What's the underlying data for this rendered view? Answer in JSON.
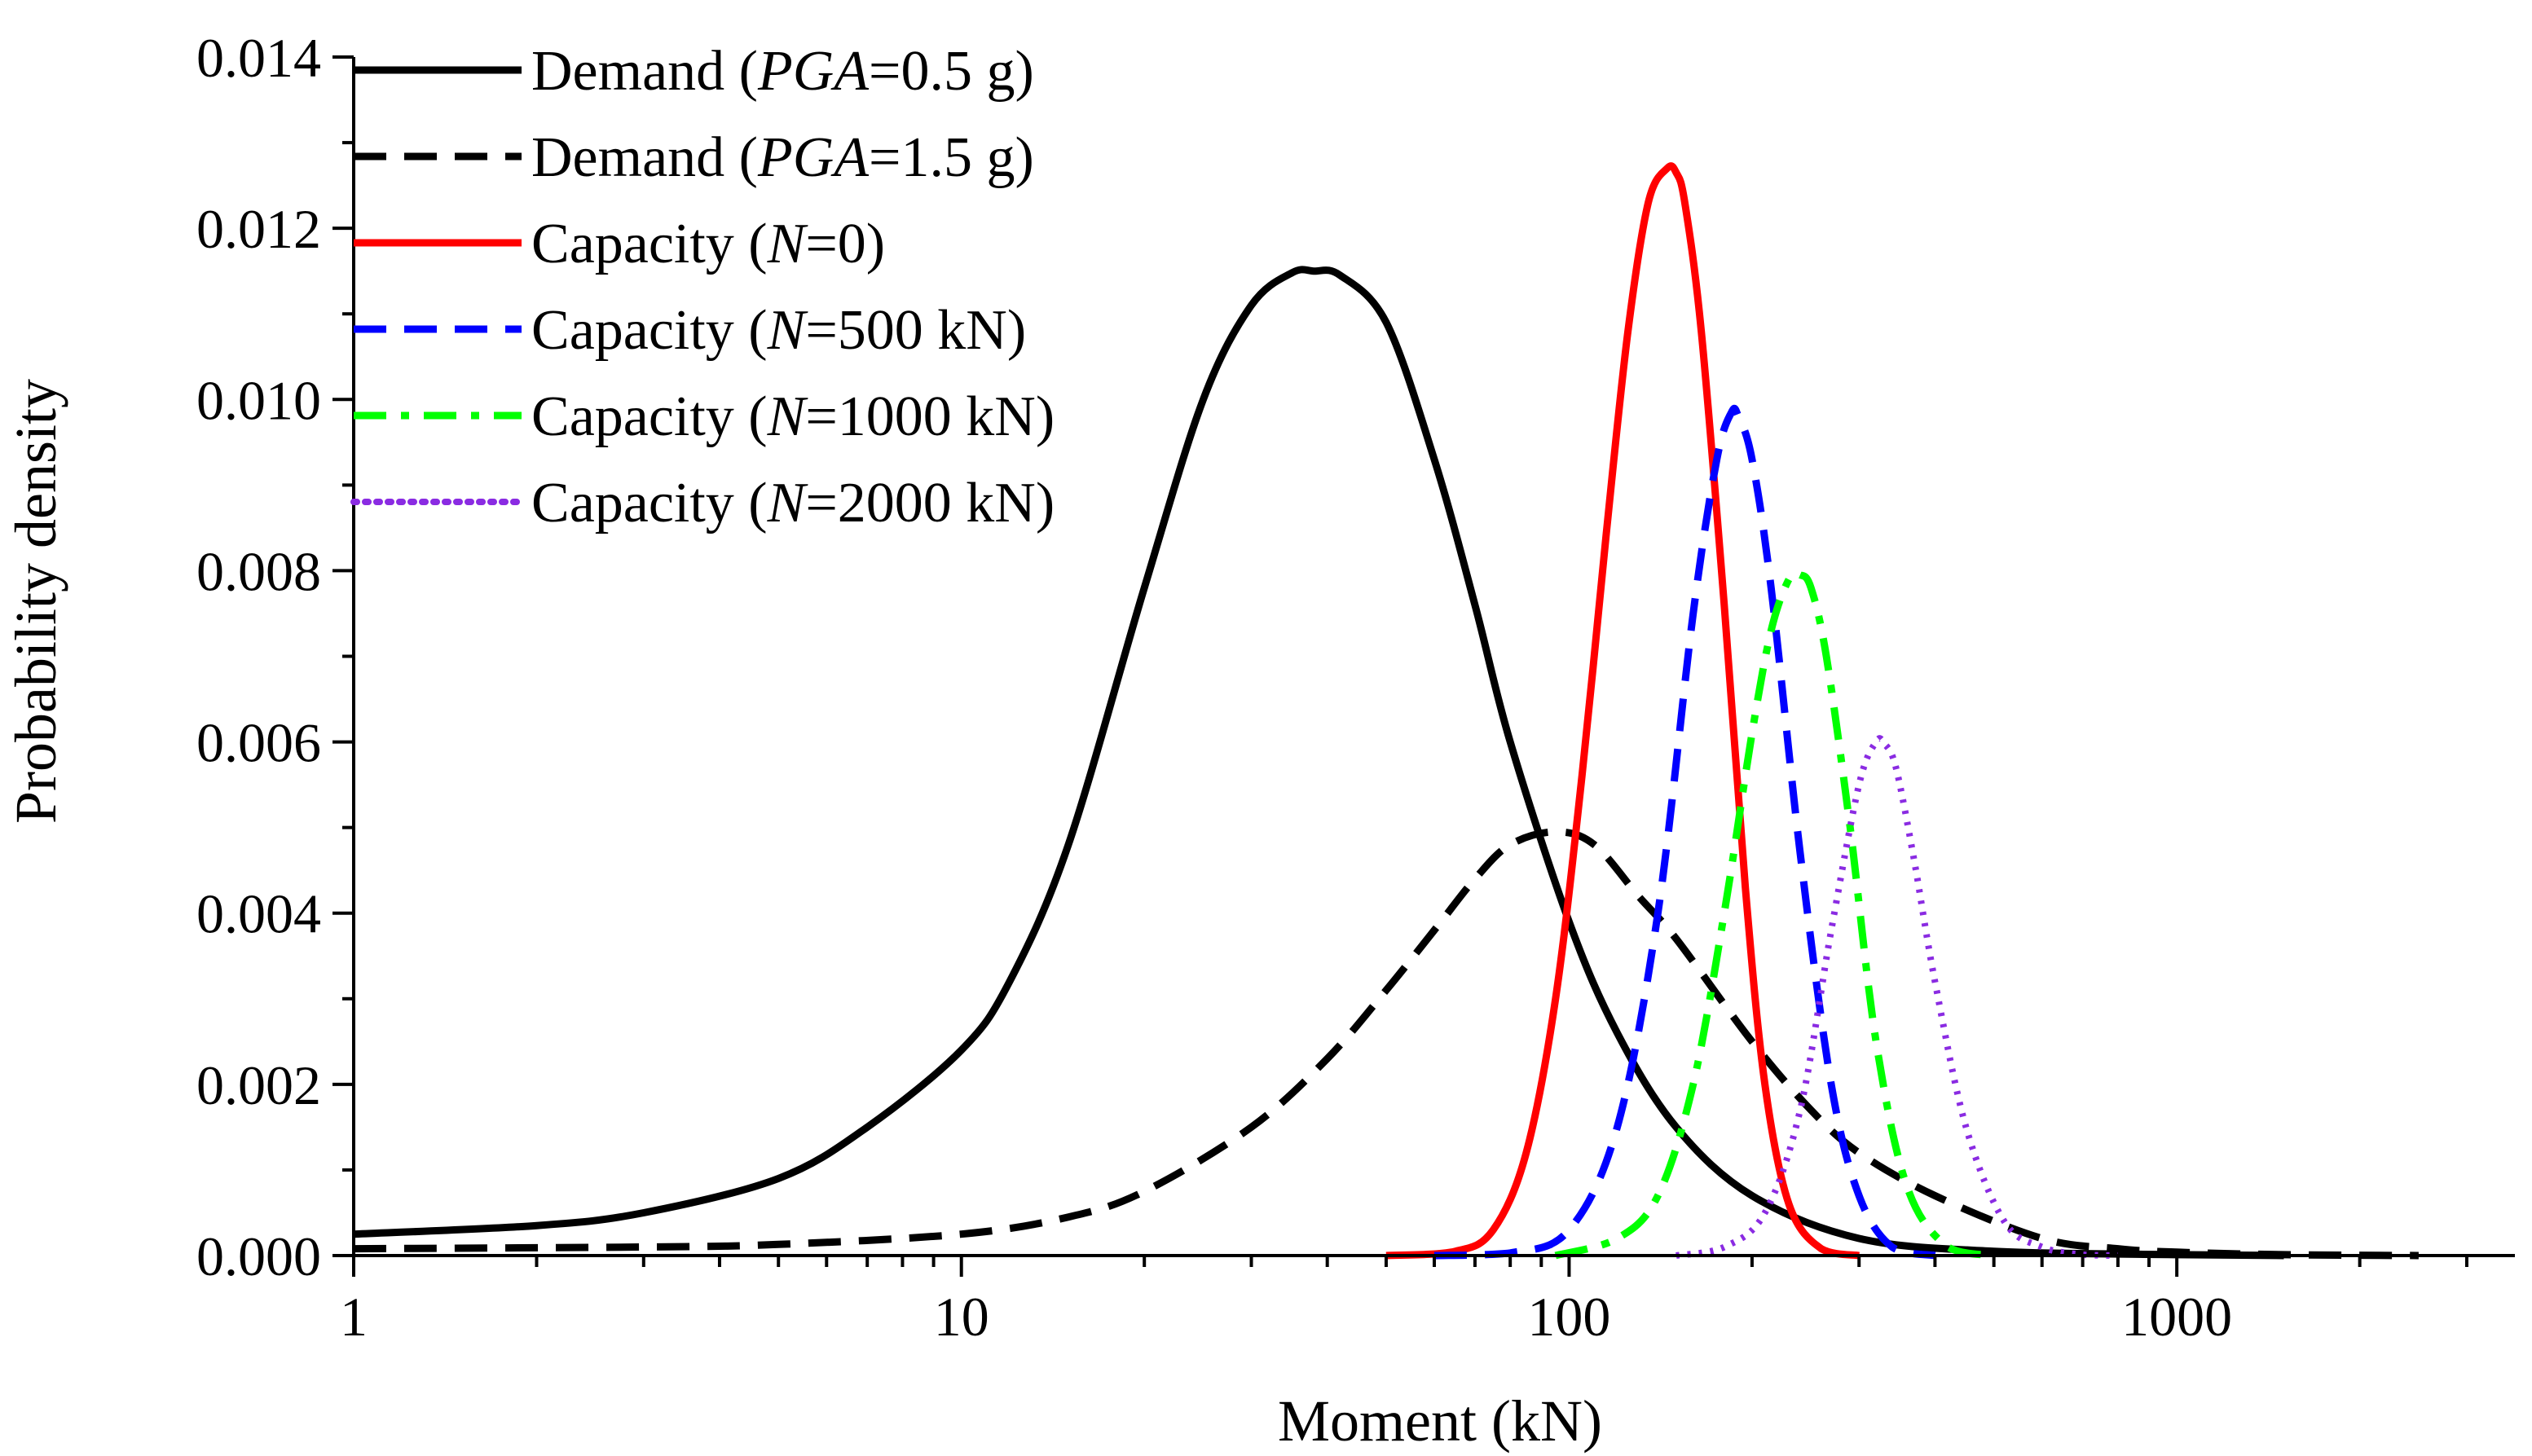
{
  "chart_data": {
    "type": "line",
    "title": "",
    "xlabel": "Moment (kN)",
    "ylabel": "Probability density",
    "xscale": "log",
    "xlim": [
      1,
      3600
    ],
    "ylim": [
      0,
      0.014
    ],
    "xticks": [
      1,
      10,
      100,
      1000
    ],
    "xtick_labels": [
      "1",
      "10",
      "100",
      "1000"
    ],
    "yticks": [
      0,
      0.002,
      0.004,
      0.006,
      0.008,
      0.01,
      0.012,
      0.014
    ],
    "ytick_labels": [
      "0.000",
      "0.002",
      "0.004",
      "0.006",
      "0.008",
      "0.010",
      "0.012",
      "0.014"
    ],
    "legend_position": "top-left",
    "series": [
      {
        "name": "Demand (PGA=0.5 g)",
        "legend_parts": [
          {
            "t": "Demand ("
          },
          {
            "t": "PGA",
            "i": true
          },
          {
            "t": "=0.5 g)"
          }
        ],
        "color": "#000000",
        "style": "solid",
        "x": [
          1,
          2,
          3,
          5,
          7,
          10,
          12,
          15,
          20,
          25,
          30,
          35,
          38,
          42,
          50,
          60,
          70,
          80,
          100,
          120,
          150,
          200,
          300,
          500,
          1000,
          1500
        ],
        "y": [
          0.00025,
          0.00035,
          0.0005,
          0.0009,
          0.0015,
          0.0024,
          0.0032,
          0.0048,
          0.0078,
          0.01,
          0.0111,
          0.01148,
          0.0115,
          0.01145,
          0.0109,
          0.0093,
          0.0076,
          0.006,
          0.0039,
          0.0026,
          0.0015,
          0.0007,
          0.0002,
          5e-05,
          1e-05,
          0.0
        ]
      },
      {
        "name": "Demand (PGA=1.5 g)",
        "legend_parts": [
          {
            "t": "Demand ("
          },
          {
            "t": "PGA",
            "i": true
          },
          {
            "t": "=1.5 g)"
          }
        ],
        "color": "#000000",
        "style": "dashed",
        "x": [
          1,
          3,
          5,
          10,
          15,
          20,
          30,
          40,
          50,
          60,
          70,
          80,
          95,
          110,
          130,
          150,
          200,
          250,
          300,
          400,
          600,
          800,
          1000,
          1500,
          2500
        ],
        "y": [
          8e-05,
          0.0001,
          0.00013,
          0.00025,
          0.00045,
          0.00075,
          0.0015,
          0.0023,
          0.0031,
          0.0038,
          0.0044,
          0.0048,
          0.00495,
          0.0048,
          0.0042,
          0.0037,
          0.0025,
          0.0017,
          0.0012,
          0.0007,
          0.0002,
          8e-05,
          4e-05,
          1e-05,
          0.0
        ]
      },
      {
        "name": "Capacity (N=0)",
        "legend_parts": [
          {
            "t": "Capacity ("
          },
          {
            "t": "N",
            "i": true
          },
          {
            "t": "=0)"
          }
        ],
        "color": "#ff0000",
        "style": "solid",
        "x": [
          50,
          65,
          75,
          85,
          95,
          105,
          115,
          125,
          135,
          145,
          150,
          155,
          165,
          180,
          195,
          210,
          230,
          260,
          300
        ],
        "y": [
          0.0,
          5e-05,
          0.0003,
          0.0012,
          0.003,
          0.0056,
          0.0084,
          0.0108,
          0.0123,
          0.0127,
          0.01265,
          0.0123,
          0.0108,
          0.0076,
          0.0043,
          0.002,
          0.0006,
          8e-05,
          0.0
        ]
      },
      {
        "name": "Capacity (N=500 kN)",
        "legend_parts": [
          {
            "t": "Capacity ("
          },
          {
            "t": "N",
            "i": true
          },
          {
            "t": "=500 kN)"
          }
        ],
        "color": "#0000ff",
        "style": "dashed",
        "x": [
          60,
          80,
          100,
          120,
          140,
          160,
          175,
          185,
          190,
          200,
          215,
          240,
          270,
          300,
          340,
          400
        ],
        "y": [
          0.0,
          3e-05,
          0.0003,
          0.0015,
          0.004,
          0.0075,
          0.0093,
          0.00985,
          0.0098,
          0.0093,
          0.0078,
          0.0047,
          0.002,
          0.0007,
          0.0001,
          0.0
        ]
      },
      {
        "name": "Capacity (N=1000 kN)",
        "legend_parts": [
          {
            "t": "Capacity ("
          },
          {
            "t": "N",
            "i": true
          },
          {
            "t": "=1000 kN)"
          }
        ],
        "color": "#00ff00",
        "style": "dashdot",
        "x": [
          95,
          120,
          140,
          160,
          180,
          200,
          215,
          230,
          240,
          250,
          265,
          290,
          320,
          360,
          420,
          500
        ],
        "y": [
          0.0,
          0.0002,
          0.0007,
          0.002,
          0.004,
          0.0061,
          0.0073,
          0.0079,
          0.00795,
          0.0078,
          0.007,
          0.005,
          0.0025,
          0.0008,
          0.0001,
          0.0
        ]
      },
      {
        "name": "Capacity (N=2000 kN)",
        "legend_parts": [
          {
            "t": "Capacity ("
          },
          {
            "t": "N",
            "i": true
          },
          {
            "t": "=2000 kN)"
          }
        ],
        "color": "#8a2be2",
        "style": "dotted",
        "x": [
          150,
          180,
          210,
          240,
          270,
          300,
          320,
          330,
          345,
          370,
          400,
          450,
          520,
          600,
          700,
          800
        ],
        "y": [
          0.0,
          0.0001,
          0.0005,
          0.0017,
          0.0038,
          0.0055,
          0.006,
          0.00598,
          0.0057,
          0.0046,
          0.0032,
          0.0015,
          0.0004,
          0.0001,
          1e-05,
          0.0
        ]
      }
    ]
  }
}
